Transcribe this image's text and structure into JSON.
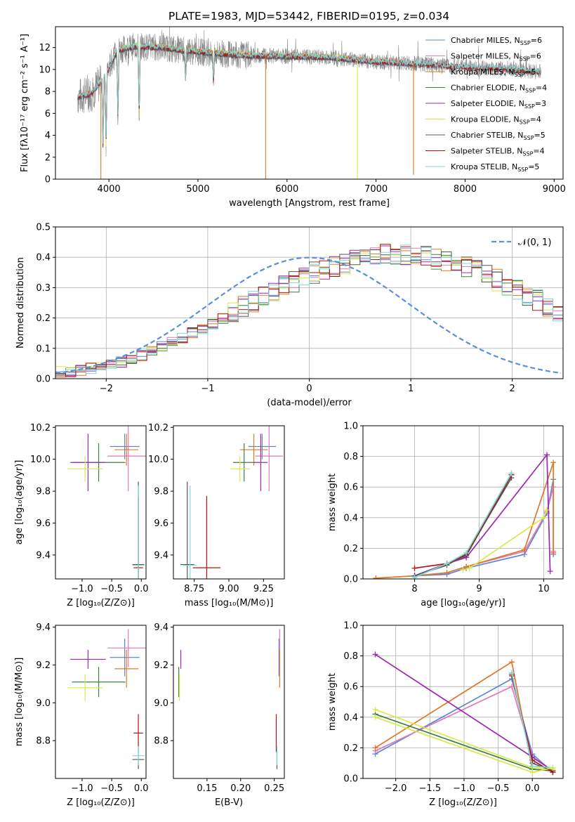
{
  "title": "PLATE=1983, MJD=53442, FIBERID=0195, z=0.034",
  "colors": {
    "Chabrier MILES": "#5b86d9",
    "Salpeter MILES": "#e07ab8",
    "Kroupa MILES": "#e0782a",
    "Chabrier ELODIE": "#3f7f3f",
    "Salpeter ELODIE": "#9b2ab0",
    "Kroupa ELODIE": "#d8e84a",
    "Chabrier STELIB": "#555555",
    "Salpeter STELIB": "#b01515",
    "Kroupa STELIB": "#7fd8d8",
    "data": "#888888",
    "normal": "#5b8fd9",
    "grid": "#b0b0b0"
  },
  "chart_data": [
    {
      "id": "spectrum",
      "type": "line",
      "xlabel": "wavelength [Angstrom, rest frame]",
      "ylabel": "Flux [fλ10⁻¹⁷ erg cm⁻² s⁻¹ A⁻¹]",
      "xlim": [
        3400,
        9100
      ],
      "ylim": [
        0,
        13.9
      ],
      "xticks": [
        4000,
        5000,
        6000,
        7000,
        8000,
        9000
      ],
      "yticks": [
        0,
        2,
        4,
        6,
        8,
        10,
        12
      ],
      "grid": false,
      "legend_placement": "top-right",
      "legend": [
        {
          "name": "Chabrier MILES",
          "nssp": "6"
        },
        {
          "name": "Salpeter MILES",
          "nssp": "6"
        },
        {
          "name": "Kroupa MILES",
          "nssp": "5"
        },
        {
          "name": "Chabrier ELODIE",
          "nssp": "4"
        },
        {
          "name": "Salpeter ELODIE",
          "nssp": "3"
        },
        {
          "name": "Kroupa ELODIE",
          "nssp": "4"
        },
        {
          "name": "Chabrier STELIB",
          "nssp": "5"
        },
        {
          "name": "Salpeter STELIB",
          "nssp": "4"
        },
        {
          "name": "Kroupa STELIB",
          "nssp": "5"
        }
      ],
      "data_range": [
        3650,
        8850
      ],
      "model_continuum": [
        [
          3650,
          7.5
        ],
        [
          3800,
          7.8
        ],
        [
          3950,
          9.3
        ],
        [
          4100,
          11.8
        ],
        [
          4300,
          12.1
        ],
        [
          4600,
          12.0
        ],
        [
          5000,
          11.6
        ],
        [
          5500,
          11.3
        ],
        [
          6000,
          11.2
        ],
        [
          6500,
          11.1
        ],
        [
          7000,
          10.7
        ],
        [
          7500,
          10.5
        ],
        [
          8000,
          10.2
        ],
        [
          8500,
          10.0
        ],
        [
          8850,
          9.8
        ]
      ],
      "absorption_features": [
        [
          3934,
          3.0
        ],
        [
          3968,
          2.8
        ],
        [
          4101,
          5.5
        ],
        [
          4340,
          5.6
        ],
        [
          4861,
          9.0
        ],
        [
          5175,
          8.8
        ],
        [
          6563,
          10.5
        ]
      ],
      "model_ranges": {
        "Chabrier MILES": [
          3650,
          7400
        ],
        "Salpeter MILES": [
          3650,
          7400
        ],
        "Kroupa MILES": [
          3650,
          7400
        ],
        "Chabrier ELODIE": [
          4000,
          6800
        ],
        "Salpeter ELODIE": [
          4000,
          6800
        ],
        "Kroupa ELODIE": [
          3900,
          6800
        ],
        "Chabrier STELIB": [
          3650,
          8850
        ],
        "Salpeter STELIB": [
          3650,
          8850
        ],
        "Kroupa STELIB": [
          3650,
          8850
        ]
      },
      "model_edge_drops": [
        [
          5760,
          0
        ],
        [
          7420,
          0.4
        ],
        [
          6790,
          0
        ],
        [
          3910,
          0
        ]
      ]
    },
    {
      "id": "residuals",
      "type": "bar",
      "xlabel": "(data-model)/error",
      "ylabel": "Normed distribution",
      "xlim": [
        -2.5,
        2.5
      ],
      "ylim": [
        0,
        0.5
      ],
      "xticks": [
        -2,
        -1,
        0,
        1,
        2
      ],
      "yticks": [
        0.0,
        0.1,
        0.2,
        0.3,
        0.4,
        0.5
      ],
      "grid": true,
      "legend_placement": "top-right",
      "legend": [
        "𝒩(0, 1)"
      ],
      "bin_width": 0.1,
      "bins_x_start": -2.5,
      "histogram_template": [
        0.022,
        0.024,
        0.028,
        0.035,
        0.04,
        0.048,
        0.055,
        0.068,
        0.078,
        0.092,
        0.106,
        0.12,
        0.135,
        0.15,
        0.165,
        0.182,
        0.2,
        0.218,
        0.235,
        0.252,
        0.27,
        0.288,
        0.305,
        0.32,
        0.335,
        0.35,
        0.36,
        0.37,
        0.38,
        0.39,
        0.395,
        0.4,
        0.41,
        0.405,
        0.41,
        0.4,
        0.405,
        0.395,
        0.39,
        0.38,
        0.37,
        0.355,
        0.34,
        0.325,
        0.31,
        0.295,
        0.275,
        0.258,
        0.24,
        0.222,
        0.2,
        0.185,
        0.165,
        0.15,
        0.13,
        0.118,
        0.1,
        0.088,
        0.075,
        0.065,
        0.055,
        0.046,
        0.04,
        0.034,
        0.03,
        0.028,
        0.025,
        0.022,
        0.02,
        0.02
      ]
    },
    {
      "id": "age_vs_Z",
      "type": "scatter",
      "xlabel": "Z [log₁₀(Z/Z⊙)]",
      "ylabel": "age  [log₁₀(age/yr)]",
      "xlim": [
        -1.45,
        0.08
      ],
      "ylim": [
        9.25,
        10.21
      ],
      "xticks": [
        -1.0,
        -0.5,
        0.0
      ],
      "yticks": [
        9.4,
        9.6,
        9.8,
        10.0,
        10.2
      ],
      "grid": false,
      "points": [
        {
          "model": "Chabrier MILES",
          "x": -0.28,
          "y": 10.08,
          "xerr": 0.25,
          "yerr": 0.08
        },
        {
          "model": "Salpeter MILES",
          "x": -0.22,
          "y": 10.02,
          "xerr": 0.35,
          "yerr": 0.22
        },
        {
          "model": "Kroupa MILES",
          "x": -0.25,
          "y": 10.06,
          "xerr": 0.2,
          "yerr": 0.1
        },
        {
          "model": "Chabrier ELODIE",
          "x": -0.72,
          "y": 9.98,
          "xerr": 0.45,
          "yerr": 0.12
        },
        {
          "model": "Salpeter ELODIE",
          "x": -0.9,
          "y": 9.98,
          "xerr": 0.3,
          "yerr": 0.18
        },
        {
          "model": "Kroupa ELODIE",
          "x": -0.95,
          "y": 9.94,
          "xerr": 0.3,
          "yerr": 0.08
        },
        {
          "model": "Chabrier STELIB",
          "x": -0.05,
          "y": 9.34,
          "xerr": 0.1,
          "yerr": 0.52
        },
        {
          "model": "Salpeter STELIB",
          "x": -0.05,
          "y": 9.32,
          "xerr": 0.08,
          "yerr": 0.45
        },
        {
          "model": "Kroupa STELIB",
          "x": -0.05,
          "y": 9.335,
          "xerr": 0.1,
          "yerr": 0.5
        }
      ]
    },
    {
      "id": "age_vs_mass",
      "type": "scatter",
      "xlabel": "mass [log₁₀(M/M⊙)]",
      "ylabel": "",
      "xlim": [
        8.6,
        9.4
      ],
      "ylim": [
        9.25,
        10.21
      ],
      "xticks": [
        8.75,
        9.0,
        9.25
      ],
      "yticks": [
        9.4,
        9.6,
        9.8,
        10.0,
        10.2
      ],
      "grid": false,
      "points": [
        {
          "model": "Chabrier MILES",
          "x": 9.24,
          "y": 10.08,
          "xerr": 0.1,
          "yerr": 0.08
        },
        {
          "model": "Salpeter MILES",
          "x": 9.29,
          "y": 10.02,
          "xerr": 0.1,
          "yerr": 0.22
        },
        {
          "model": "Kroupa MILES",
          "x": 9.18,
          "y": 10.06,
          "xerr": 0.1,
          "yerr": 0.1
        },
        {
          "model": "Chabrier ELODIE",
          "x": 9.11,
          "y": 9.98,
          "xerr": 0.08,
          "yerr": 0.12
        },
        {
          "model": "Salpeter ELODIE",
          "x": 9.23,
          "y": 9.98,
          "xerr": 0.05,
          "yerr": 0.18
        },
        {
          "model": "Kroupa ELODIE",
          "x": 9.08,
          "y": 9.94,
          "xerr": 0.07,
          "yerr": 0.08
        },
        {
          "model": "Chabrier STELIB",
          "x": 8.7,
          "y": 9.34,
          "xerr": 0.05,
          "yerr": 0.52
        },
        {
          "model": "Salpeter STELIB",
          "x": 8.84,
          "y": 9.32,
          "xerr": 0.1,
          "yerr": 0.45
        },
        {
          "model": "Kroupa STELIB",
          "x": 8.72,
          "y": 9.335,
          "xerr": 0.05,
          "yerr": 0.5
        }
      ]
    },
    {
      "id": "weight_vs_age",
      "type": "line",
      "xlabel": "age  [log₁₀(age/yr)]",
      "ylabel": "mass weight",
      "xlim": [
        7.2,
        10.3
      ],
      "ylim": [
        0,
        1.0
      ],
      "xticks": [
        8,
        9,
        10
      ],
      "yticks": [
        0.0,
        0.2,
        0.4,
        0.6,
        0.8,
        1.0
      ],
      "grid": true,
      "series": [
        {
          "model": "Chabrier MILES",
          "x": [
            8.0,
            8.5,
            8.8,
            9.7,
            10.05,
            10.15,
            10.15
          ],
          "y": [
            0.02,
            0.03,
            0.07,
            0.16,
            0.43,
            0.65,
            0.16
          ]
        },
        {
          "model": "Salpeter MILES",
          "x": [
            8.0,
            8.5,
            8.8,
            9.7,
            10.05,
            10.15,
            10.15
          ],
          "y": [
            0.02,
            0.04,
            0.08,
            0.18,
            0.44,
            0.6,
            0.18
          ]
        },
        {
          "model": "Kroupa MILES",
          "x": [
            7.4,
            8.0,
            8.5,
            8.8,
            9.7,
            10.15,
            10.15
          ],
          "y": [
            0.005,
            0.02,
            0.04,
            0.08,
            0.19,
            0.76,
            0.17
          ]
        },
        {
          "model": "Chabrier ELODIE",
          "x": [
            8.0,
            8.5,
            8.8,
            9.5
          ],
          "y": [
            0.02,
            0.1,
            0.15,
            0.68
          ]
        },
        {
          "model": "Salpeter ELODIE",
          "x": [
            8.0,
            8.5,
            8.8,
            10.05,
            10.1
          ],
          "y": [
            0.02,
            0.1,
            0.14,
            0.81,
            0.05
          ]
        },
        {
          "model": "Kroupa ELODIE",
          "x": [
            8.75,
            8.85,
            10.0,
            10.05
          ],
          "y": [
            0.06,
            0.07,
            0.4,
            0.45
          ]
        },
        {
          "model": "Chabrier STELIB",
          "x": [
            8.0,
            8.5,
            8.8,
            9.5
          ],
          "y": [
            0.02,
            0.09,
            0.16,
            0.66
          ]
        },
        {
          "model": "Salpeter STELIB",
          "x": [
            8.0,
            8.5,
            8.8,
            9.5
          ],
          "y": [
            0.07,
            0.1,
            0.16,
            0.68
          ]
        },
        {
          "model": "Kroupa STELIB",
          "x": [
            8.0,
            8.5,
            8.8,
            9.5
          ],
          "y": [
            0.01,
            0.1,
            0.17,
            0.69
          ]
        }
      ]
    },
    {
      "id": "mass_vs_Z",
      "type": "scatter",
      "xlabel": "Z [log₁₀(Z/Z⊙)]",
      "ylabel": "mass [log₁₀(M/M⊙)]",
      "xlim": [
        -1.45,
        0.08
      ],
      "ylim": [
        8.6,
        9.41
      ],
      "xticks": [
        -1.0,
        -0.5,
        0.0
      ],
      "yticks": [
        8.8,
        9.0,
        9.2,
        9.4
      ],
      "grid": false,
      "points": [
        {
          "model": "Chabrier MILES",
          "x": -0.28,
          "y": 9.24,
          "xerr": 0.25,
          "yerr": 0.1
        },
        {
          "model": "Salpeter MILES",
          "x": -0.22,
          "y": 9.29,
          "xerr": 0.35,
          "yerr": 0.1
        },
        {
          "model": "Kroupa MILES",
          "x": -0.25,
          "y": 9.18,
          "xerr": 0.2,
          "yerr": 0.1
        },
        {
          "model": "Chabrier ELODIE",
          "x": -0.72,
          "y": 9.11,
          "xerr": 0.45,
          "yerr": 0.08
        },
        {
          "model": "Salpeter ELODIE",
          "x": -0.9,
          "y": 9.23,
          "xerr": 0.3,
          "yerr": 0.05
        },
        {
          "model": "Kroupa ELODIE",
          "x": -0.95,
          "y": 9.08,
          "xerr": 0.3,
          "yerr": 0.07
        },
        {
          "model": "Chabrier STELIB",
          "x": -0.05,
          "y": 8.7,
          "xerr": 0.1,
          "yerr": 0.05
        },
        {
          "model": "Salpeter STELIB",
          "x": -0.05,
          "y": 8.84,
          "xerr": 0.08,
          "yerr": 0.1
        },
        {
          "model": "Kroupa STELIB",
          "x": -0.05,
          "y": 8.72,
          "xerr": 0.1,
          "yerr": 0.05
        }
      ]
    },
    {
      "id": "mass_vs_EBV",
      "type": "scatter",
      "xlabel": "E(B-V)",
      "ylabel": "",
      "xlim": [
        0.1,
        0.265
      ],
      "ylim": [
        8.6,
        9.41
      ],
      "xticks": [
        0.15,
        0.2,
        0.25
      ],
      "yticks": [
        8.8,
        9.0,
        9.2,
        9.4
      ],
      "grid": false,
      "points": [
        {
          "model": "Chabrier MILES",
          "x": 0.257,
          "y": 9.24,
          "xerr": 0,
          "yerr": 0.1
        },
        {
          "model": "Salpeter MILES",
          "x": 0.258,
          "y": 9.29,
          "xerr": 0,
          "yerr": 0.1
        },
        {
          "model": "Kroupa MILES",
          "x": 0.258,
          "y": 9.18,
          "xerr": 0,
          "yerr": 0.1
        },
        {
          "model": "Chabrier ELODIE",
          "x": 0.108,
          "y": 9.11,
          "xerr": 0,
          "yerr": 0.08
        },
        {
          "model": "Salpeter ELODIE",
          "x": 0.111,
          "y": 9.23,
          "xerr": 0,
          "yerr": 0.05
        },
        {
          "model": "Kroupa ELODIE",
          "x": 0.109,
          "y": 9.08,
          "xerr": 0,
          "yerr": 0.07
        },
        {
          "model": "Chabrier STELIB",
          "x": 0.254,
          "y": 8.7,
          "xerr": 0,
          "yerr": 0.05
        },
        {
          "model": "Salpeter STELIB",
          "x": 0.253,
          "y": 8.84,
          "xerr": 0,
          "yerr": 0.1
        },
        {
          "model": "Kroupa STELIB",
          "x": 0.254,
          "y": 8.72,
          "xerr": 0,
          "yerr": 0.05
        }
      ]
    },
    {
      "id": "weight_vs_Z",
      "type": "line",
      "xlabel": "Z [log₁₀(Z/Z⊙)]",
      "ylabel": "mass weight",
      "xlim": [
        -2.48,
        0.45
      ],
      "ylim": [
        0,
        1.0
      ],
      "xticks": [
        -2.0,
        -1.5,
        -1.0,
        -0.5,
        0.0
      ],
      "yticks": [
        0.0,
        0.2,
        0.4,
        0.6,
        0.8,
        1.0
      ],
      "grid": true,
      "series": [
        {
          "model": "Chabrier MILES",
          "x": [
            -2.3,
            -0.3,
            0.0,
            0.3
          ],
          "y": [
            0.16,
            0.65,
            0.16,
            0.04
          ]
        },
        {
          "model": "Salpeter MILES",
          "x": [
            -2.3,
            -0.3,
            0.0,
            0.3
          ],
          "y": [
            0.18,
            0.6,
            0.14,
            0.05
          ]
        },
        {
          "model": "Kroupa MILES",
          "x": [
            -2.3,
            -0.3,
            0.0,
            0.3
          ],
          "y": [
            0.2,
            0.76,
            0.06,
            0.05
          ]
        },
        {
          "model": "Chabrier ELODIE",
          "x": [
            -2.3,
            0.0,
            0.3
          ],
          "y": [
            0.42,
            0.06,
            0.05
          ]
        },
        {
          "model": "Salpeter ELODIE",
          "x": [
            -2.3,
            0.0,
            0.3
          ],
          "y": [
            0.81,
            0.14,
            0.05
          ]
        },
        {
          "model": "Kroupa ELODIE",
          "x": [
            -2.3,
            0.0,
            0.3
          ],
          "y": [
            0.45,
            0.07,
            0.06
          ]
        },
        {
          "model": "Chabrier STELIB",
          "x": [
            -0.3,
            0.0,
            0.3
          ],
          "y": [
            0.68,
            0.1,
            0.05
          ]
        },
        {
          "model": "Salpeter STELIB",
          "x": [
            -0.3,
            0.0,
            0.3
          ],
          "y": [
            0.67,
            0.12,
            0.04
          ]
        },
        {
          "model": "Kroupa STELIB",
          "x": [
            -0.3,
            0.0,
            0.3
          ],
          "y": [
            0.69,
            0.08,
            0.07
          ]
        }
      ],
      "extra_series": [
        {
          "model": "Kroupa ELODIE",
          "x": [
            -2.3,
            0.0,
            0.3
          ],
          "y": [
            0.4,
            0.04,
            0.07
          ]
        }
      ]
    }
  ]
}
